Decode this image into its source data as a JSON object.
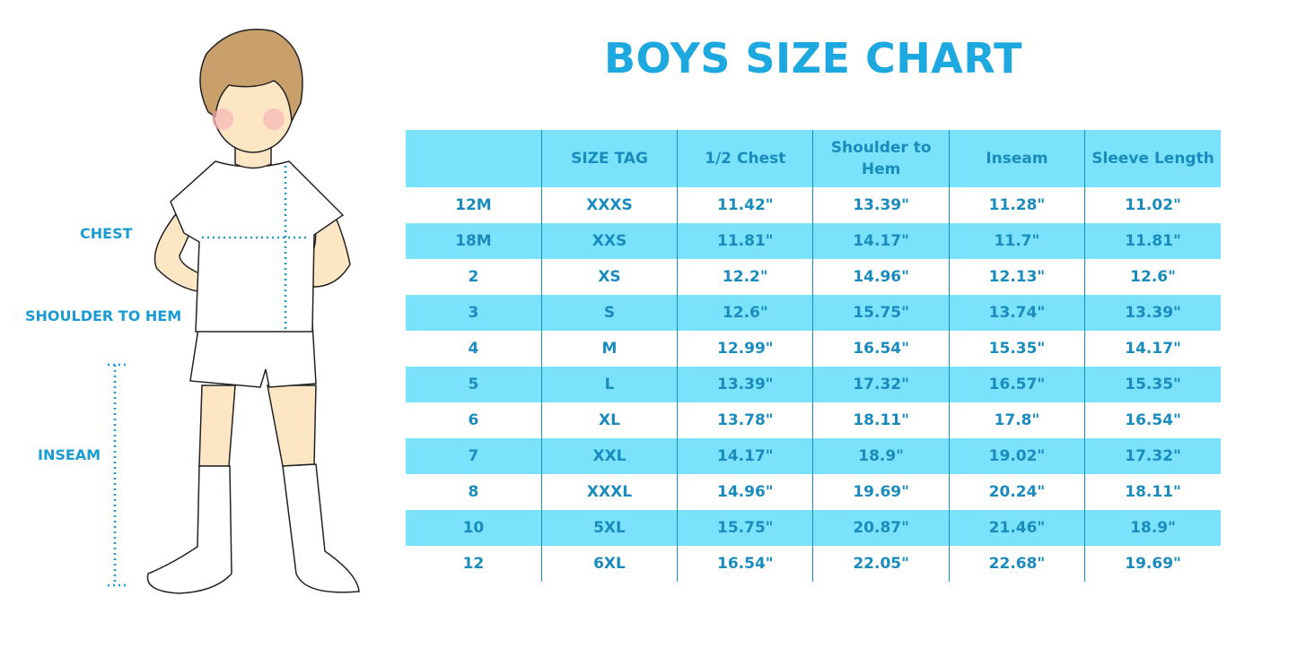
{
  "title": "BOYS SIZE CHART",
  "measure_labels": {
    "chest": "CHEST",
    "shoulder_to_hem": "SHOULDER TO HEM",
    "inseam": "INSEAM"
  },
  "colors": {
    "accent": "#1ea8e0",
    "row_highlight": "#7ae3fb",
    "text": "#1a8bbd"
  },
  "chart_data": {
    "type": "table",
    "title": "BOYS SIZE CHART",
    "columns": [
      "",
      "SIZE TAG",
      "1/2 Chest",
      "Shoulder to Hem",
      "Inseam",
      "Sleeve Length"
    ],
    "rows": [
      [
        "12M",
        "XXXS",
        "11.42\"",
        "13.39\"",
        "11.28\"",
        "11.02\""
      ],
      [
        "18M",
        "XXS",
        "11.81\"",
        "14.17\"",
        "11.7\"",
        "11.81\""
      ],
      [
        "2",
        "XS",
        "12.2\"",
        "14.96\"",
        "12.13\"",
        "12.6\""
      ],
      [
        "3",
        "S",
        "12.6\"",
        "15.75\"",
        "13.74\"",
        "13.39\""
      ],
      [
        "4",
        "M",
        "12.99\"",
        "16.54\"",
        "15.35\"",
        "14.17\""
      ],
      [
        "5",
        "L",
        "13.39\"",
        "17.32\"",
        "16.57\"",
        "15.35\""
      ],
      [
        "6",
        "XL",
        "13.78\"",
        "18.11\"",
        "17.8\"",
        "16.54\""
      ],
      [
        "7",
        "XXL",
        "14.17\"",
        "18.9\"",
        "19.02\"",
        "17.32\""
      ],
      [
        "8",
        "XXXL",
        "14.96\"",
        "19.69\"",
        "20.24\"",
        "18.11\""
      ],
      [
        "10",
        "5XL",
        "15.75\"",
        "20.87\"",
        "21.46\"",
        "18.9\""
      ],
      [
        "12",
        "6XL",
        "16.54\"",
        "22.05\"",
        "22.68\"",
        "19.69\""
      ]
    ]
  }
}
